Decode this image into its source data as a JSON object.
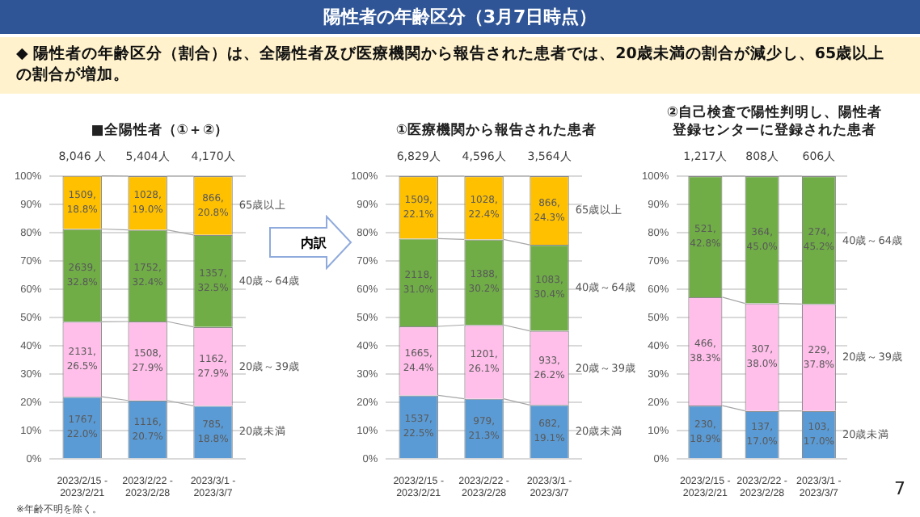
{
  "chart_data": [
    {
      "type": "bar",
      "stacked": true,
      "title": "■全陽性者（①＋②）",
      "categories": [
        "2023/2/15 -\n2023/2/21",
        "2023/2/22 -\n2023/2/28",
        "2023/3/1 -\n2023/3/7"
      ],
      "series": [
        {
          "name": "20歳未満",
          "color": "#5b9bd5",
          "values": [
            22.0,
            20.7,
            18.8
          ],
          "value_labels": [
            "1767,\n22.0%",
            "1116,\n20.7%",
            "785,\n18.8%"
          ]
        },
        {
          "name": "20歳～39歳",
          "color": "#ffbfea",
          "values": [
            26.5,
            27.9,
            27.9
          ],
          "value_labels": [
            "2131,\n26.5%",
            "1508,\n27.9%",
            "1162,\n27.9%"
          ]
        },
        {
          "name": "40歳～64歳",
          "color": "#70ad47",
          "values": [
            32.8,
            32.4,
            32.5
          ],
          "value_labels": [
            "2639,\n32.8%",
            "1752,\n32.4%",
            "1357,\n32.5%"
          ]
        },
        {
          "name": "65歳以上",
          "color": "#ffc000",
          "values": [
            18.8,
            19.0,
            20.8
          ],
          "value_labels": [
            "1509,\n18.8%",
            "1028,\n19.0%",
            "866,\n20.8%"
          ]
        }
      ],
      "ylim": [
        0,
        100
      ],
      "yticks": [
        {
          "value": 0,
          "label": "0%"
        },
        {
          "value": 10,
          "label": "10%"
        },
        {
          "value": 20,
          "label": "20%"
        },
        {
          "value": 30,
          "label": "30%"
        },
        {
          "value": 40,
          "label": "40%"
        },
        {
          "value": 50,
          "label": "50%"
        },
        {
          "value": 60,
          "label": "60%"
        },
        {
          "value": 70,
          "label": "70%"
        },
        {
          "value": 80,
          "label": "80%"
        },
        {
          "value": 90,
          "label": "90%"
        },
        {
          "value": 100,
          "label": "100%"
        }
      ],
      "grid": "y",
      "legend": false,
      "annotations": [
        "陽性者の年齢区分（3月7日時点）",
        "◆  陽性者の年齢区分（割合）は、全陽性者及び医療機関から報告された患者では、20歳未満の割合が減少し、65歳以上の割合が増加。",
        "内訳",
        "※年齢不明を除く。",
        "7",
        {
          "text": "8,046 人",
          "x": "2023/2/15 -\n2023/2/21",
          "y": 100
        },
        {
          "text": "5,404人",
          "x": "2023/2/22 -\n2023/2/28",
          "y": 100
        },
        {
          "text": "4,170人",
          "x": "2023/3/1 -\n2023/3/7",
          "y": 100
        }
      ]
    },
    {
      "type": "bar",
      "stacked": true,
      "title": "①医療機関から報告された患者",
      "categories": [
        "2023/2/15 -\n2023/2/21",
        "2023/2/22 -\n2023/2/28",
        "2023/3/1 -\n2023/3/7"
      ],
      "series": [
        {
          "name": "20歳未満",
          "color": "#5b9bd5",
          "values": [
            22.5,
            21.3,
            19.1
          ],
          "value_labels": [
            "1537,\n22.5%",
            "979,\n21.3%",
            "682,\n19.1%"
          ]
        },
        {
          "name": "20歳～39歳",
          "color": "#ffbfea",
          "values": [
            24.4,
            26.1,
            26.2
          ],
          "value_labels": [
            "1665,\n24.4%",
            "1201,\n26.1%",
            "933,\n26.2%"
          ]
        },
        {
          "name": "40歳～64歳",
          "color": "#70ad47",
          "values": [
            31.0,
            30.2,
            30.4
          ],
          "value_labels": [
            "2118,\n31.0%",
            "1388,\n30.2%",
            "1083,\n30.4%"
          ]
        },
        {
          "name": "65歳以上",
          "color": "#ffc000",
          "values": [
            22.1,
            22.4,
            24.3
          ],
          "value_labels": [
            "1509,\n22.1%",
            "1028,\n22.4%",
            "866,\n24.3%"
          ]
        }
      ],
      "ylim": [
        0,
        100
      ],
      "yticks": [
        {
          "value": 0,
          "label": "0%"
        },
        {
          "value": 10,
          "label": "10%"
        },
        {
          "value": 20,
          "label": "20%"
        },
        {
          "value": 30,
          "label": "30%"
        },
        {
          "value": 40,
          "label": "40%"
        },
        {
          "value": 50,
          "label": "50%"
        },
        {
          "value": 60,
          "label": "60%"
        },
        {
          "value": 70,
          "label": "70%"
        },
        {
          "value": 80,
          "label": "80%"
        },
        {
          "value": 90,
          "label": "90%"
        },
        {
          "value": 100,
          "label": "100%"
        }
      ],
      "grid": "y",
      "legend": false,
      "annotations": [
        {
          "text": "6,829人",
          "x": "2023/2/15 -\n2023/2/21",
          "y": 100
        },
        {
          "text": "4,596人",
          "x": "2023/2/22 -\n2023/2/28",
          "y": 100
        },
        {
          "text": "3,564人",
          "x": "2023/3/1 -\n2023/3/7",
          "y": 100
        }
      ]
    },
    {
      "type": "bar",
      "stacked": true,
      "title": "②自己検査で陽性判明し、陽性者登録センターに登録された患者",
      "categories": [
        "2023/2/15 -\n2023/2/21",
        "2023/2/22 -\n2023/2/28",
        "2023/3/1 -\n2023/3/7"
      ],
      "series": [
        {
          "name": "20歳未満",
          "color": "#5b9bd5",
          "values": [
            18.9,
            17.0,
            17.0
          ],
          "value_labels": [
            "230,\n18.9%",
            "137,\n17.0%",
            "103,\n17.0%"
          ]
        },
        {
          "name": "20歳～39歳",
          "color": "#ffbfea",
          "values": [
            38.3,
            38.0,
            37.8
          ],
          "value_labels": [
            "466,\n38.3%",
            "307,\n38.0%",
            "229,\n37.8%"
          ]
        },
        {
          "name": "40歳～64歳",
          "color": "#70ad47",
          "values": [
            42.8,
            45.0,
            45.2
          ],
          "value_labels": [
            "521,\n42.8%",
            "364,\n45.0%",
            "274,\n45.2%"
          ]
        }
      ],
      "ylim": [
        0,
        100
      ],
      "yticks": [
        {
          "value": 0,
          "label": "0%"
        },
        {
          "value": 10,
          "label": "10%"
        },
        {
          "value": 20,
          "label": "20%"
        },
        {
          "value": 30,
          "label": "30%"
        },
        {
          "value": 40,
          "label": "40%"
        },
        {
          "value": 50,
          "label": "50%"
        },
        {
          "value": 60,
          "label": "60%"
        },
        {
          "value": 70,
          "label": "70%"
        },
        {
          "value": 80,
          "label": "80%"
        },
        {
          "value": 90,
          "label": "90%"
        },
        {
          "value": 100,
          "label": "100%"
        }
      ],
      "grid": "y",
      "legend": false,
      "annotations": [
        {
          "text": "1,217人",
          "x": "2023/2/15 -\n2023/2/21",
          "y": 100
        },
        {
          "text": "808人",
          "x": "2023/2/22 -\n2023/2/28",
          "y": 100
        },
        {
          "text": "606人",
          "x": "2023/3/1 -\n2023/3/7",
          "y": 100
        }
      ]
    }
  ]
}
